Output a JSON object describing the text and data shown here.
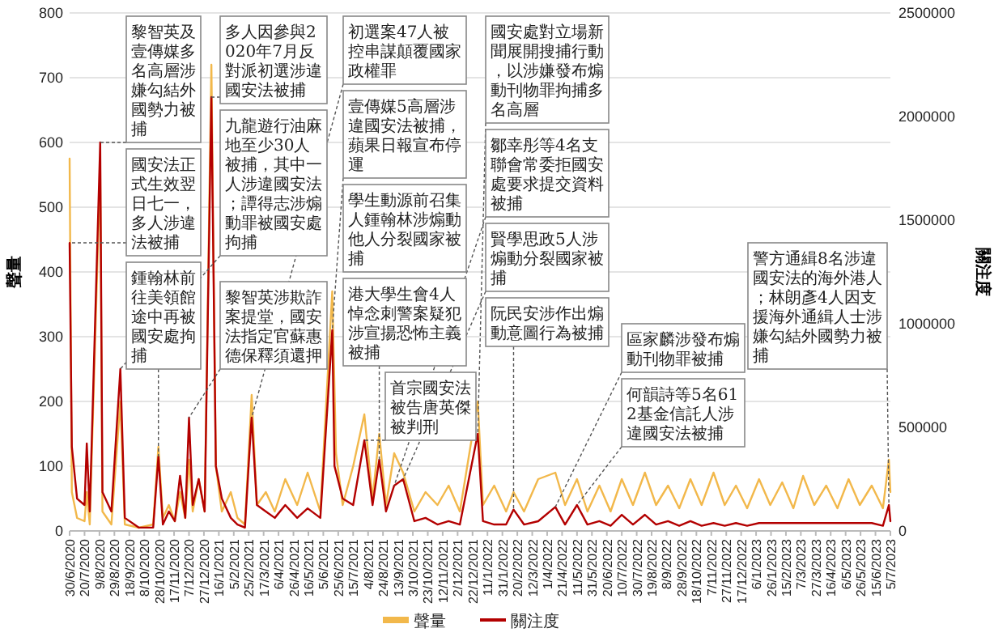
{
  "chart_data": {
    "type": "line",
    "ylabel": "聲量",
    "y2label": "關注度",
    "xlim": [
      "2020-06-30",
      "2023-07-05"
    ],
    "ylim": [
      0,
      800
    ],
    "yticks": [
      0,
      100,
      200,
      300,
      400,
      500,
      600,
      700,
      800
    ],
    "y2lim": [
      0,
      2500000
    ],
    "y2ticks": [
      0,
      500000,
      1000000,
      1500000,
      2000000,
      2500000
    ],
    "xticks": [
      {
        "value": "2020-06-30",
        "label": "30/6/2020"
      },
      {
        "value": "2020-07-20",
        "label": "20/7/2020"
      },
      {
        "value": "2020-08-09",
        "label": "9/8/2020"
      },
      {
        "value": "2020-08-29",
        "label": "29/8/2020"
      },
      {
        "value": "2020-09-18",
        "label": "18/9/2020"
      },
      {
        "value": "2020-10-08",
        "label": "8/10/2020"
      },
      {
        "value": "2020-10-28",
        "label": "28/10/2020"
      },
      {
        "value": "2020-11-17",
        "label": "17/11/2020"
      },
      {
        "value": "2020-12-07",
        "label": "7/12/2020"
      },
      {
        "value": "2020-12-27",
        "label": "27/12/2020"
      },
      {
        "value": "2021-01-16",
        "label": "16/1/2021"
      },
      {
        "value": "2021-02-05",
        "label": "5/2/2021"
      },
      {
        "value": "2021-02-25",
        "label": "25/2/2021"
      },
      {
        "value": "2021-03-17",
        "label": "17/3/2021"
      },
      {
        "value": "2021-04-06",
        "label": "6/4/2021"
      },
      {
        "value": "2021-04-26",
        "label": "26/4/2021"
      },
      {
        "value": "2021-05-16",
        "label": "16/5/2021"
      },
      {
        "value": "2021-06-05",
        "label": "5/6/2021"
      },
      {
        "value": "2021-06-25",
        "label": "25/6/2021"
      },
      {
        "value": "2021-07-15",
        "label": "15/7/2021"
      },
      {
        "value": "2021-08-04",
        "label": "4/8/2021"
      },
      {
        "value": "2021-08-24",
        "label": "24/8/2021"
      },
      {
        "value": "2021-09-13",
        "label": "13/9/2021"
      },
      {
        "value": "2021-10-03",
        "label": "3/10/2021"
      },
      {
        "value": "2021-10-23",
        "label": "23/10/2021"
      },
      {
        "value": "2021-11-12",
        "label": "12/11/2021"
      },
      {
        "value": "2021-12-02",
        "label": "2/12/2021"
      },
      {
        "value": "2021-12-22",
        "label": "22/12/2021"
      },
      {
        "value": "2022-01-11",
        "label": "11/1/2022"
      },
      {
        "value": "2022-01-31",
        "label": "31/1/2022"
      },
      {
        "value": "2022-02-20",
        "label": "20/2/2022"
      },
      {
        "value": "2022-03-12",
        "label": "12/3/2022"
      },
      {
        "value": "2022-04-01",
        "label": "1/4/2022"
      },
      {
        "value": "2022-04-21",
        "label": "21/4/2022"
      },
      {
        "value": "2022-05-11",
        "label": "11/5/2022"
      },
      {
        "value": "2022-05-31",
        "label": "31/5/2022"
      },
      {
        "value": "2022-06-20",
        "label": "20/6/2022"
      },
      {
        "value": "2022-07-10",
        "label": "10/7/2022"
      },
      {
        "value": "2022-07-30",
        "label": "30/7/2022"
      },
      {
        "value": "2022-08-19",
        "label": "19/8/2022"
      },
      {
        "value": "2022-09-08",
        "label": "8/9/2022"
      },
      {
        "value": "2022-09-28",
        "label": "28/9/2022"
      },
      {
        "value": "2022-10-18",
        "label": "18/10/2022"
      },
      {
        "value": "2022-11-07",
        "label": "7/11/2022"
      },
      {
        "value": "2022-11-27",
        "label": "27/11/2022"
      },
      {
        "value": "2022-12-17",
        "label": "17/12/2022"
      },
      {
        "value": "2023-01-06",
        "label": "6/1/2023"
      },
      {
        "value": "2023-01-26",
        "label": "26/1/2023"
      },
      {
        "value": "2023-02-15",
        "label": "15/2/2023"
      },
      {
        "value": "2023-03-07",
        "label": "7/3/2023"
      },
      {
        "value": "2023-03-27",
        "label": "27/3/2023"
      },
      {
        "value": "2023-04-16",
        "label": "16/4/2023"
      },
      {
        "value": "2023-05-06",
        "label": "6/5/2023"
      },
      {
        "value": "2023-05-26",
        "label": "26/5/2023"
      },
      {
        "value": "2023-06-15",
        "label": "15/6/2023"
      },
      {
        "value": "2023-07-05",
        "label": "5/7/2023"
      }
    ],
    "grid": "y",
    "legend": "bottom",
    "series": [
      {
        "name": "聲量",
        "color": "#f2b84b",
        "x": [
          "2020-06-30",
          "2020-07-03",
          "2020-07-10",
          "2020-07-20",
          "2020-07-23",
          "2020-07-27",
          "2020-08-10",
          "2020-08-13",
          "2020-08-25",
          "2020-09-06",
          "2020-09-12",
          "2020-10-01",
          "2020-10-20",
          "2020-10-27",
          "2020-11-02",
          "2020-11-10",
          "2020-11-18",
          "2020-11-25",
          "2020-12-02",
          "2020-12-07",
          "2020-12-12",
          "2020-12-20",
          "2020-12-28",
          "2021-01-06",
          "2021-01-12",
          "2021-01-20",
          "2021-02-01",
          "2021-02-10",
          "2021-02-20",
          "2021-03-01",
          "2021-03-08",
          "2021-03-20",
          "2021-04-01",
          "2021-04-15",
          "2021-05-01",
          "2021-05-15",
          "2021-06-01",
          "2021-06-17",
          "2021-06-22",
          "2021-07-01",
          "2021-07-15",
          "2021-07-30",
          "2021-08-10",
          "2021-08-19",
          "2021-08-28",
          "2021-09-08",
          "2021-09-20",
          "2021-10-05",
          "2021-10-20",
          "2021-11-05",
          "2021-11-20",
          "2021-12-05",
          "2021-12-29",
          "2022-01-05",
          "2022-01-20",
          "2022-02-05",
          "2022-02-15",
          "2022-03-01",
          "2022-03-20",
          "2022-04-12",
          "2022-04-25",
          "2022-05-11",
          "2022-05-25",
          "2022-06-10",
          "2022-06-25",
          "2022-07-10",
          "2022-07-25",
          "2022-08-10",
          "2022-08-25",
          "2022-09-10",
          "2022-09-25",
          "2022-10-10",
          "2022-10-25",
          "2022-11-10",
          "2022-11-25",
          "2022-12-10",
          "2022-12-25",
          "2023-01-10",
          "2023-01-25",
          "2023-02-10",
          "2023-02-25",
          "2023-03-10",
          "2023-03-25",
          "2023-04-10",
          "2023-04-25",
          "2023-05-10",
          "2023-05-25",
          "2023-06-10",
          "2023-06-25",
          "2023-07-03",
          "2023-07-05"
        ],
        "values": [
          575,
          60,
          20,
          15,
          60,
          10,
          560,
          30,
          10,
          200,
          10,
          5,
          10,
          130,
          20,
          40,
          15,
          60,
          20,
          110,
          30,
          80,
          30,
          720,
          100,
          30,
          60,
          20,
          10,
          210,
          40,
          60,
          30,
          80,
          40,
          90,
          30,
          370,
          120,
          40,
          100,
          180,
          50,
          150,
          40,
          120,
          90,
          30,
          60,
          40,
          70,
          30,
          200,
          40,
          70,
          30,
          60,
          30,
          80,
          90,
          40,
          80,
          30,
          70,
          30,
          80,
          40,
          90,
          40,
          70,
          35,
          80,
          40,
          90,
          40,
          70,
          35,
          80,
          40,
          75,
          35,
          85,
          40,
          70,
          35,
          80,
          40,
          70,
          35,
          110,
          60
        ]
      },
      {
        "name": "關注度",
        "color": "#b30000",
        "axis": "y2",
        "x": [
          "2020-06-30",
          "2020-07-03",
          "2020-07-10",
          "2020-07-20",
          "2020-07-23",
          "2020-07-27",
          "2020-08-10",
          "2020-08-13",
          "2020-08-25",
          "2020-09-06",
          "2020-09-12",
          "2020-10-01",
          "2020-10-20",
          "2020-10-27",
          "2020-11-02",
          "2020-11-10",
          "2020-11-18",
          "2020-11-25",
          "2020-12-02",
          "2020-12-07",
          "2020-12-12",
          "2020-12-20",
          "2020-12-28",
          "2021-01-06",
          "2021-01-12",
          "2021-01-20",
          "2021-02-01",
          "2021-02-10",
          "2021-02-20",
          "2021-02-28",
          "2021-03-01",
          "2021-03-08",
          "2021-03-20",
          "2021-04-01",
          "2021-04-15",
          "2021-05-01",
          "2021-05-15",
          "2021-06-01",
          "2021-06-17",
          "2021-06-20",
          "2021-07-01",
          "2021-07-15",
          "2021-07-30",
          "2021-08-10",
          "2021-08-19",
          "2021-08-28",
          "2021-09-08",
          "2021-09-20",
          "2021-10-05",
          "2021-10-20",
          "2021-11-05",
          "2021-11-20",
          "2021-12-05",
          "2021-12-29",
          "2022-01-05",
          "2022-01-20",
          "2022-02-05",
          "2022-02-15",
          "2022-03-01",
          "2022-03-20",
          "2022-04-12",
          "2022-04-25",
          "2022-05-11",
          "2022-05-25",
          "2022-06-10",
          "2022-06-25",
          "2022-07-10",
          "2022-07-25",
          "2022-08-10",
          "2022-08-25",
          "2022-09-10",
          "2022-09-25",
          "2022-10-10",
          "2022-10-25",
          "2022-11-10",
          "2022-11-25",
          "2022-12-10",
          "2022-12-25",
          "2023-01-10",
          "2023-02-10",
          "2023-03-10",
          "2023-04-10",
          "2023-05-10",
          "2023-06-10",
          "2023-06-25",
          "2023-07-03",
          "2023-07-05"
        ],
        "values": [
          1390000,
          406000,
          156000,
          125000,
          422000,
          94000,
          1875000,
          188000,
          94000,
          781000,
          63000,
          16000,
          16000,
          359000,
          31000,
          94000,
          47000,
          266000,
          63000,
          547000,
          125000,
          250000,
          94000,
          2094000,
          313000,
          156000,
          63000,
          31000,
          16000,
          500000,
          547000,
          125000,
          94000,
          63000,
          125000,
          63000,
          109000,
          63000,
          969000,
          313000,
          156000,
          125000,
          438000,
          125000,
          344000,
          94000,
          219000,
          250000,
          47000,
          63000,
          31000,
          47000,
          31000,
          469000,
          47000,
          31000,
          31000,
          103000,
          31000,
          47000,
          116000,
          31000,
          125000,
          31000,
          47000,
          25000,
          78000,
          31000,
          78000,
          31000,
          47000,
          25000,
          47000,
          25000,
          38000,
          25000,
          38000,
          25000,
          38000,
          38000,
          38000,
          38000,
          38000,
          38000,
          25000,
          125000,
          47000
        ]
      }
    ],
    "annotations": [
      {
        "text": "國安法正式生效翌日七一，多人涉違法被捕",
        "x": "2020-06-30",
        "y": 445
      },
      {
        "text": "黎智英及壹傳媒多名高層涉嫌勾結外國勢力被捕",
        "x": "2020-08-10",
        "y": 600
      },
      {
        "text": "九龍遊行油麻地至少30人被捕，其中一人涉違國安法；譚得志涉煽動罪被國安處拘捕",
        "x": "2020-09-06",
        "y": 250
      },
      {
        "text": "鍾翰林前往美領館途中再被國安處拘捕",
        "x": "2020-10-27",
        "y": 115
      },
      "學生動源前召集人鍾翰林涉煽動他人分裂國家被捕",
      {
        "text": "黎智英涉欺詐案提堂，國安法指定官蘇惠德保釋須還押",
        "x": "2020-12-07",
        "y": 175
      },
      {
        "text": "多人因參與2020年7月反對派初選涉違國安法被捕",
        "x": "2021-01-06",
        "y": 670
      },
      {
        "text": "初選案47人被控串謀顛覆國家政權罪",
        "x": "2021-03-01",
        "y": 175
      },
      {
        "text": "首宗國安法被告唐英傑被判刑",
        "x": "2021-07-30",
        "y": 140
      },
      {
        "text": "港大學生會4人悼念刺警案疑犯涉宣揚恐怖主義被捕",
        "x": "2021-08-19",
        "y": 110
      },
      {
        "text": "壹傳媒5高層涉違國安法被捕，蘋果日報宣布停運",
        "x": "2021-06-17",
        "y": 310
      },
      {
        "text": "鄒幸彤等4名支聯會常委拒國安處要求提交資料被捕",
        "x": "2021-09-08",
        "y": 70
      },
      {
        "text": "賢學思政5人涉煽動分裂國家被捕",
        "x": "2021-09-20",
        "y": 80
      },
      {
        "text": "國安處對立場新聞展開搜捕行動，以涉嫌發布煽動刊物罪拘捕多名高層",
        "x": "2021-12-29",
        "y": 150
      },
      {
        "text": "阮民安涉作出煽動意圖行為被捕",
        "x": "2022-02-15",
        "y": 33
      },
      {
        "text": "區家麟涉發布煽動刊物罪被捕",
        "x": "2022-04-12",
        "y": 37
      },
      {
        "text": "何韻詩等5名612基金信託人涉違國安法被捕",
        "x": "2022-05-11",
        "y": 40
      },
      {
        "text": "警方通緝8名涉違國安法的海外港人；林朗彥4人因支援海外通緝人士涉嫌勾結外國勢力被捕",
        "x": "2023-07-03",
        "y": 40
      }
    ]
  }
}
